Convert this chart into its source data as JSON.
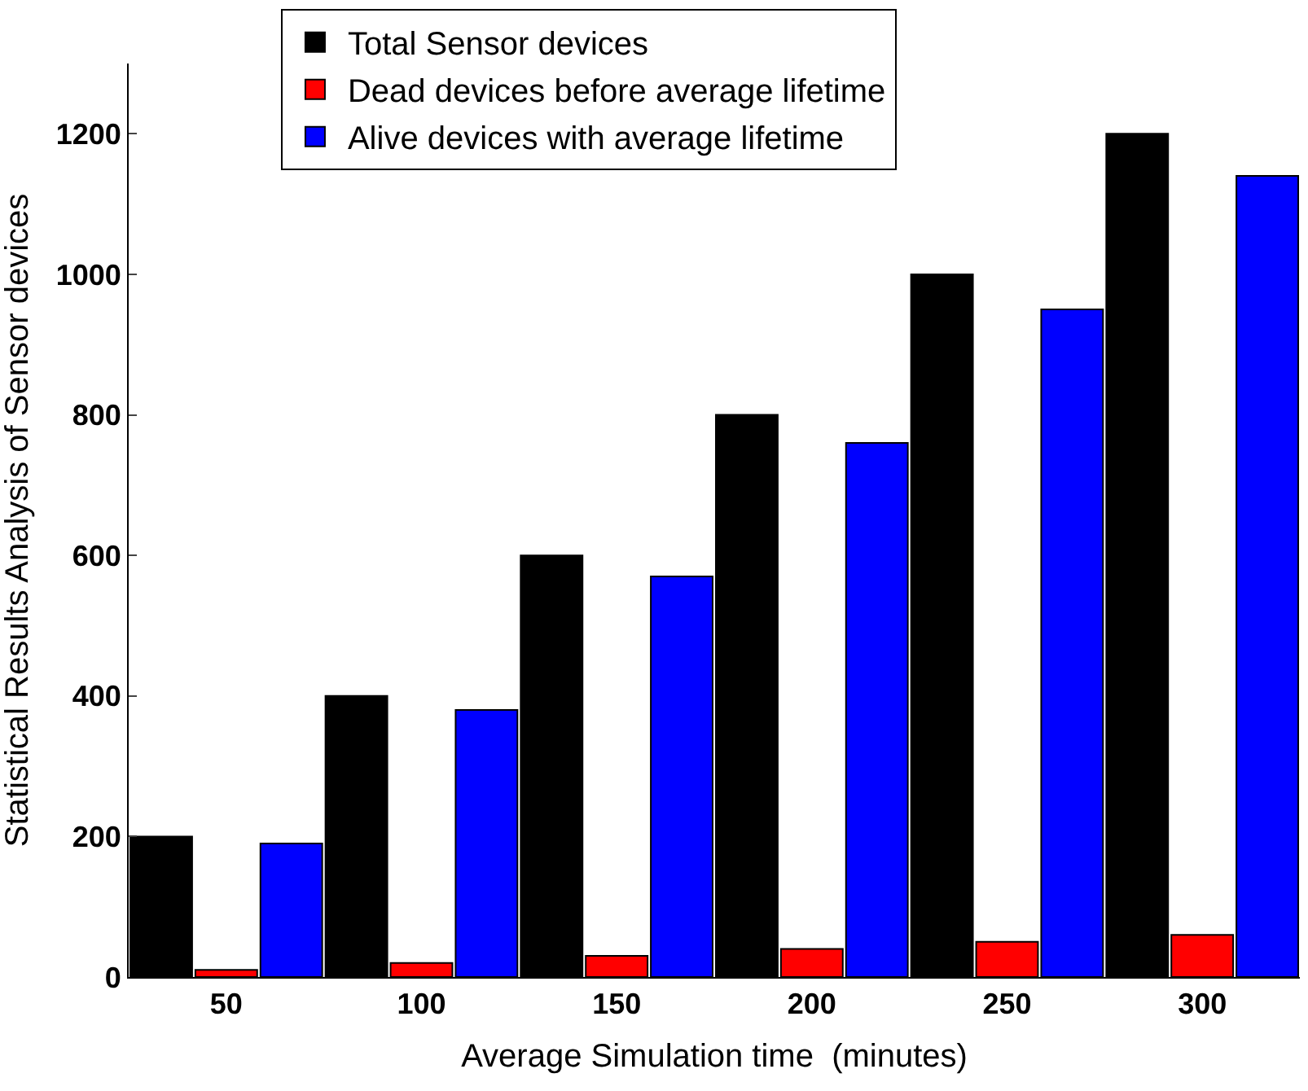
{
  "chart_data": {
    "type": "bar",
    "xlabel": "Average Simulation time  (minutes)",
    "ylabel": "Statistical Results Analysis of Sensor devices",
    "categories": [
      "50",
      "100",
      "150",
      "200",
      "250",
      "300"
    ],
    "series": [
      {
        "name": "Total Sensor devices",
        "color": "#000000",
        "values": [
          200,
          400,
          600,
          800,
          1000,
          1200
        ]
      },
      {
        "name": "Dead devices before average lifetime",
        "color": "#ff0000",
        "values": [
          10,
          20,
          30,
          40,
          50,
          60
        ]
      },
      {
        "name": "Alive devices with average lifetime",
        "color": "#0000ff",
        "values": [
          190,
          380,
          570,
          760,
          950,
          1140
        ]
      }
    ],
    "ylim": [
      0,
      1300
    ],
    "yticks": [
      0,
      200,
      400,
      600,
      800,
      1000,
      1200
    ],
    "legend": "top"
  }
}
